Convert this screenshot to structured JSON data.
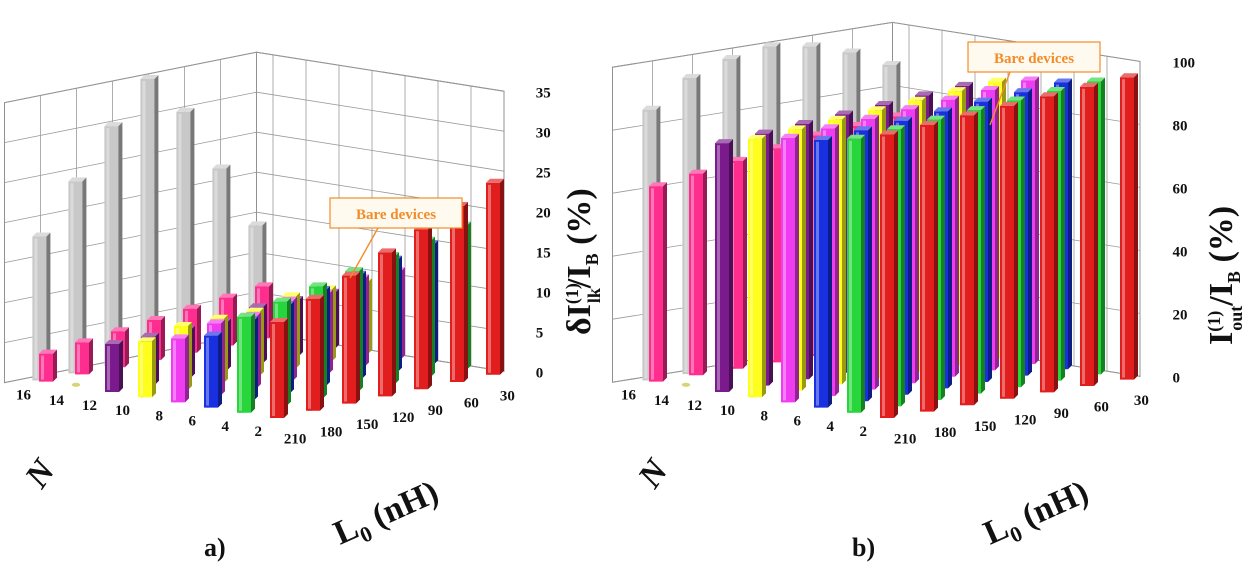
{
  "colors": {
    "N2": "#e21d1d",
    "N4": "#27d63b",
    "N6": "#1830e0",
    "N8": "#f03cf0",
    "N10": "#ffff1e",
    "N12": "#7a1a8c",
    "N16": "#ff2d8e",
    "bare": "#c8c8c8",
    "annotation": "#f28c28"
  },
  "chart_data": [
    {
      "type": "bar3d",
      "panel_label": "a)",
      "x_axis_label": "N",
      "y_axis_label": "L",
      "y_axis_subscript": "0",
      "y_axis_unit": " (nH)",
      "z_axis_label": "δI",
      "z_axis_superscript": "(1)",
      "z_axis_subscript": "lk",
      "z_axis_rest": "/I",
      "z_axis_rest_subscript": "B",
      "z_axis_unit": " (%)",
      "annotation": "Bare devices",
      "N_ticks": [
        "2",
        "4",
        "6",
        "8",
        "10",
        "12",
        "14",
        "16"
      ],
      "L0_ticks": [
        "30",
        "60",
        "90",
        "120",
        "150",
        "180",
        "210"
      ],
      "z_ticks": [
        "0",
        "5",
        "10",
        "15",
        "20",
        "25",
        "30",
        "35"
      ],
      "zlim": [
        0,
        35
      ],
      "series": [
        {
          "N": 2,
          "L0": [
            30,
            60,
            90,
            120,
            150,
            180,
            210
          ],
          "values": [
            24,
            22,
            20,
            18,
            16,
            14,
            12
          ]
        },
        {
          "N": 4,
          "L0": [
            30,
            60,
            90,
            120,
            150,
            180,
            210
          ],
          "values": [
            18,
            17,
            16,
            15,
            14,
            13,
            12
          ]
        },
        {
          "N": 6,
          "L0": [
            30,
            60,
            90,
            120,
            150,
            180,
            210
          ],
          "values": [
            15,
            14,
            13,
            12,
            11,
            10,
            9
          ]
        },
        {
          "N": 8,
          "L0": [
            30,
            60,
            90,
            120,
            150,
            180,
            210
          ],
          "values": [
            11,
            11,
            10,
            10,
            9,
            9,
            8
          ]
        },
        {
          "N": 10,
          "L0": [
            30,
            60,
            90,
            120,
            150,
            180,
            210
          ],
          "values": [
            9,
            9,
            9,
            8,
            8,
            8,
            7
          ]
        },
        {
          "N": 12,
          "L0": [
            30,
            60,
            90,
            120,
            150,
            180,
            210
          ],
          "values": [
            7,
            7,
            7,
            6,
            6,
            6,
            6
          ]
        },
        {
          "N": 16,
          "L0": [
            30,
            60,
            90,
            120,
            150,
            180,
            210
          ],
          "values": [
            6.5,
            6,
            5.5,
            5,
            4.5,
            4,
            3.5
          ]
        }
      ],
      "bare_devices": {
        "L0": [
          30,
          60,
          90,
          120,
          150,
          180,
          210
        ],
        "values": [
          14,
          22,
          30,
          35,
          30,
          24,
          18
        ]
      }
    },
    {
      "type": "bar3d",
      "panel_label": "b)",
      "x_axis_label": "N",
      "y_axis_label": "L",
      "y_axis_subscript": "0",
      "y_axis_unit": " (nH)",
      "z_axis_label": "I",
      "z_axis_superscript": "(1)",
      "z_axis_subscript": "out",
      "z_axis_rest": "/I",
      "z_axis_rest_subscript": "B",
      "z_axis_unit": " (%)",
      "annotation": "Bare devices",
      "N_ticks": [
        "2",
        "4",
        "6",
        "8",
        "10",
        "12",
        "14",
        "16"
      ],
      "L0_ticks": [
        "30",
        "60",
        "90",
        "120",
        "150",
        "180",
        "210"
      ],
      "z_ticks": [
        "0",
        "20",
        "40",
        "60",
        "80",
        "100"
      ],
      "zlim": [
        0,
        100
      ],
      "series": [
        {
          "N": 2,
          "L0": [
            30,
            60,
            90,
            120,
            150,
            180,
            210
          ],
          "values": [
            96,
            95,
            94,
            93,
            92,
            91,
            90
          ]
        },
        {
          "N": 4,
          "L0": [
            30,
            60,
            90,
            120,
            150,
            180,
            210
          ],
          "values": [
            93,
            92,
            91,
            90,
            89,
            88,
            87
          ]
        },
        {
          "N": 6,
          "L0": [
            30,
            60,
            90,
            120,
            150,
            180,
            210
          ],
          "values": [
            91,
            90,
            89,
            88,
            87,
            86,
            85
          ]
        },
        {
          "N": 8,
          "L0": [
            30,
            60,
            90,
            120,
            150,
            180,
            210
          ],
          "values": [
            90,
            89,
            88,
            87,
            86,
            85,
            84
          ]
        },
        {
          "N": 10,
          "L0": [
            30,
            60,
            90,
            120,
            150,
            180,
            210
          ],
          "values": [
            88,
            87,
            86,
            85,
            84,
            83,
            82
          ]
        },
        {
          "N": 12,
          "L0": [
            30,
            60,
            90,
            120,
            150,
            180,
            210
          ],
          "values": [
            85,
            84,
            83,
            82,
            81,
            80,
            79
          ]
        },
        {
          "N": 16,
          "L0": [
            30,
            60,
            90,
            120,
            150,
            180,
            210
          ],
          "values": [
            72,
            71,
            70,
            68,
            66,
            64,
            62
          ]
        }
      ],
      "bare_devices": {
        "L0": [
          30,
          60,
          90,
          120,
          150,
          180,
          210
        ],
        "values": [
          88,
          94,
          98,
          100,
          98,
          94,
          86
        ]
      }
    }
  ]
}
